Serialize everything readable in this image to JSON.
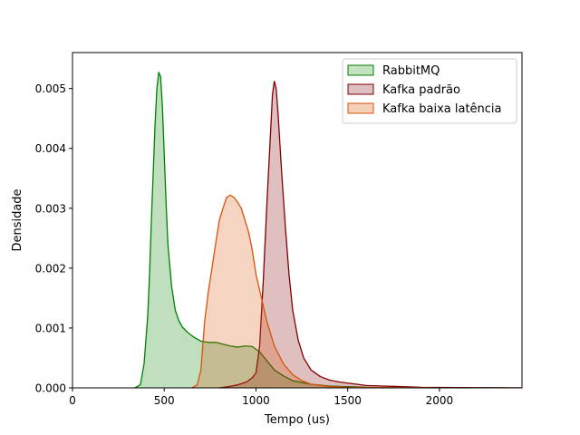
{
  "chart_data": {
    "type": "area",
    "title": "",
    "xlabel": "Tempo (us)",
    "ylabel": "Densidade",
    "xlim": [
      0,
      2450
    ],
    "ylim": [
      0,
      0.0056
    ],
    "x_ticks": [
      0,
      500,
      1000,
      1500,
      2000
    ],
    "x_tick_labels": [
      "0",
      "500",
      "1000",
      "1500",
      "2000"
    ],
    "y_ticks": [
      0,
      0.001,
      0.002,
      0.003,
      0.004,
      0.005
    ],
    "y_tick_labels": [
      "0.000",
      "0.001",
      "0.002",
      "0.003",
      "0.004",
      "0.005"
    ],
    "grid": false,
    "legend": "top-right",
    "series": [
      {
        "name": "RabbitMQ",
        "color": "#008000",
        "fill": "#c3e2c0",
        "x": [
          340,
          370,
          390,
          410,
          420,
          430,
          440,
          450,
          460,
          470,
          480,
          490,
          500,
          510,
          520,
          540,
          560,
          580,
          600,
          630,
          660,
          700,
          740,
          780,
          820,
          860,
          900,
          940,
          980,
          1020,
          1060,
          1100,
          1150,
          1200,
          1300,
          1400,
          1500,
          1600,
          1700
        ],
        "values": [
          0,
          5e-05,
          0.0004,
          0.0012,
          0.0019,
          0.0028,
          0.0036,
          0.0044,
          0.005,
          0.00527,
          0.0052,
          0.0047,
          0.0039,
          0.0031,
          0.0024,
          0.0017,
          0.0013,
          0.00112,
          0.00101,
          0.00092,
          0.00085,
          0.00078,
          0.00076,
          0.00076,
          0.00073,
          0.0007,
          0.00068,
          0.0007,
          0.00069,
          0.0006,
          0.00045,
          0.0003,
          0.0002,
          0.00012,
          6e-05,
          3e-05,
          2e-05,
          1e-05,
          0
        ]
      },
      {
        "name": "Kafka padrão",
        "color": "#800000",
        "fill": "#dcbfc0",
        "x": [
          800,
          850,
          900,
          950,
          980,
          1000,
          1020,
          1040,
          1060,
          1080,
          1090,
          1100,
          1110,
          1120,
          1140,
          1160,
          1180,
          1200,
          1230,
          1260,
          1300,
          1350,
          1400,
          1450,
          1500,
          1550,
          1600,
          1700,
          1800,
          1900,
          2000,
          2100,
          2200,
          2300,
          2400,
          2450
        ],
        "values": [
          0,
          2e-05,
          5e-05,
          0.0001,
          0.00017,
          0.00025,
          0.0007,
          0.0018,
          0.0031,
          0.0043,
          0.0049,
          0.00512,
          0.005,
          0.0046,
          0.0036,
          0.0027,
          0.0019,
          0.0013,
          0.0008,
          0.0005,
          0.0003,
          0.00019,
          0.00013,
          0.0001,
          8e-05,
          6e-05,
          4e-05,
          3e-05,
          2e-05,
          1e-05,
          8e-06,
          5e-06,
          4e-06,
          3e-06,
          2e-06,
          2e-06
        ]
      },
      {
        "name": "Kafka baixa latência",
        "color": "#d9530b",
        "fill": "#f5cfb6",
        "x": [
          650,
          680,
          700,
          720,
          740,
          760,
          780,
          800,
          820,
          840,
          860,
          880,
          900,
          920,
          940,
          960,
          980,
          1000,
          1030,
          1060,
          1100,
          1150,
          1200,
          1250,
          1300,
          1400,
          1500,
          1600,
          1700,
          1800,
          1900,
          2000
        ],
        "values": [
          0,
          5e-05,
          0.0003,
          0.0011,
          0.0016,
          0.002,
          0.0024,
          0.0028,
          0.003,
          0.00318,
          0.00322,
          0.00318,
          0.0031,
          0.003,
          0.0028,
          0.0026,
          0.0023,
          0.0019,
          0.0015,
          0.0011,
          0.0007,
          0.0004,
          0.00022,
          0.00012,
          6e-05,
          2e-05,
          1e-05,
          8e-06,
          5e-06,
          3e-06,
          2e-06,
          0
        ]
      }
    ]
  }
}
